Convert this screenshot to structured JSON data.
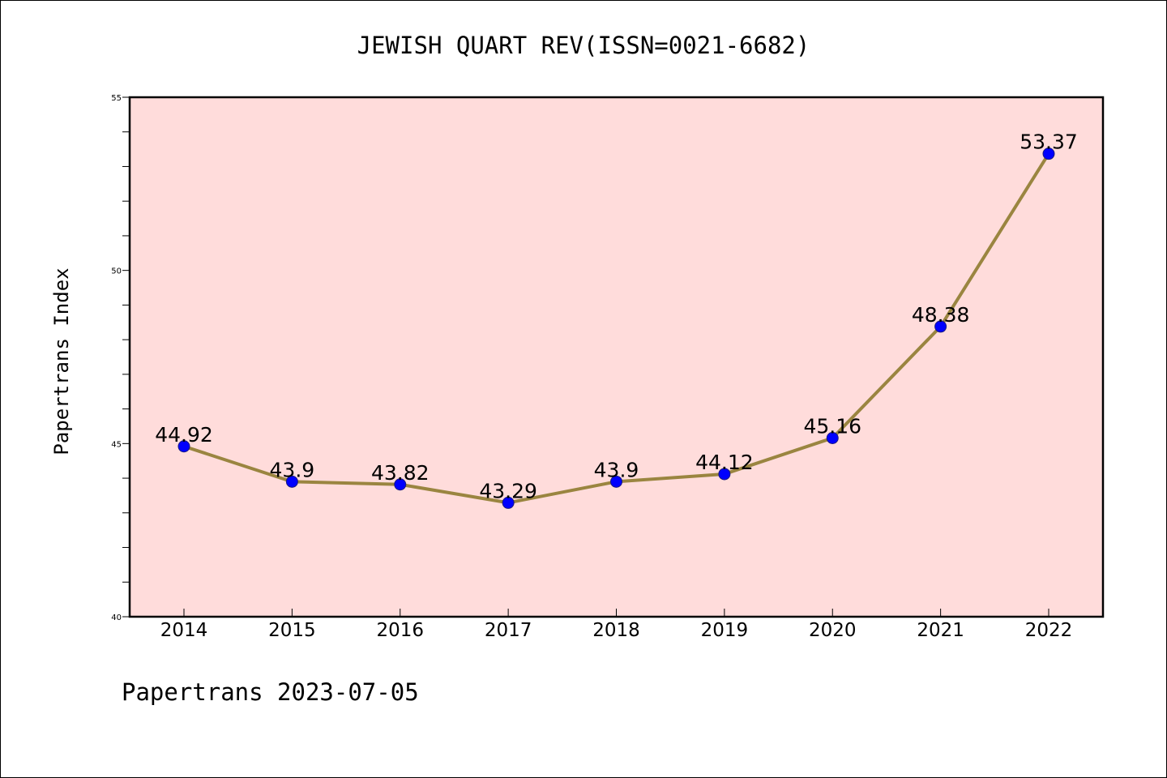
{
  "chart_data": {
    "type": "line",
    "title": "JEWISH QUART REV(ISSN=0021-6682)",
    "ylabel": "Papertrans Index",
    "xlabel": "",
    "categories": [
      "2014",
      "2015",
      "2016",
      "2017",
      "2018",
      "2019",
      "2020",
      "2021",
      "2022"
    ],
    "values": [
      44.92,
      43.9,
      43.82,
      43.29,
      43.9,
      44.12,
      45.16,
      48.38,
      53.37
    ],
    "point_labels": [
      "44.92",
      "43.9",
      "43.82",
      "43.29",
      "43.9",
      "44.12",
      "45.16",
      "48.38",
      "53.37"
    ],
    "ylim": [
      40,
      55
    ],
    "yticks": [
      40,
      45,
      50,
      55
    ],
    "yticks_minor_step": 1,
    "grid": false,
    "legend": "none",
    "colors": {
      "plot_background": "#ffdcdb",
      "line": "#9a8540",
      "marker_fill": "#0000ff",
      "marker_edge": "#1a1a80",
      "axis": "#000000"
    }
  },
  "footer": {
    "text": "Papertrans 2023-07-05"
  }
}
